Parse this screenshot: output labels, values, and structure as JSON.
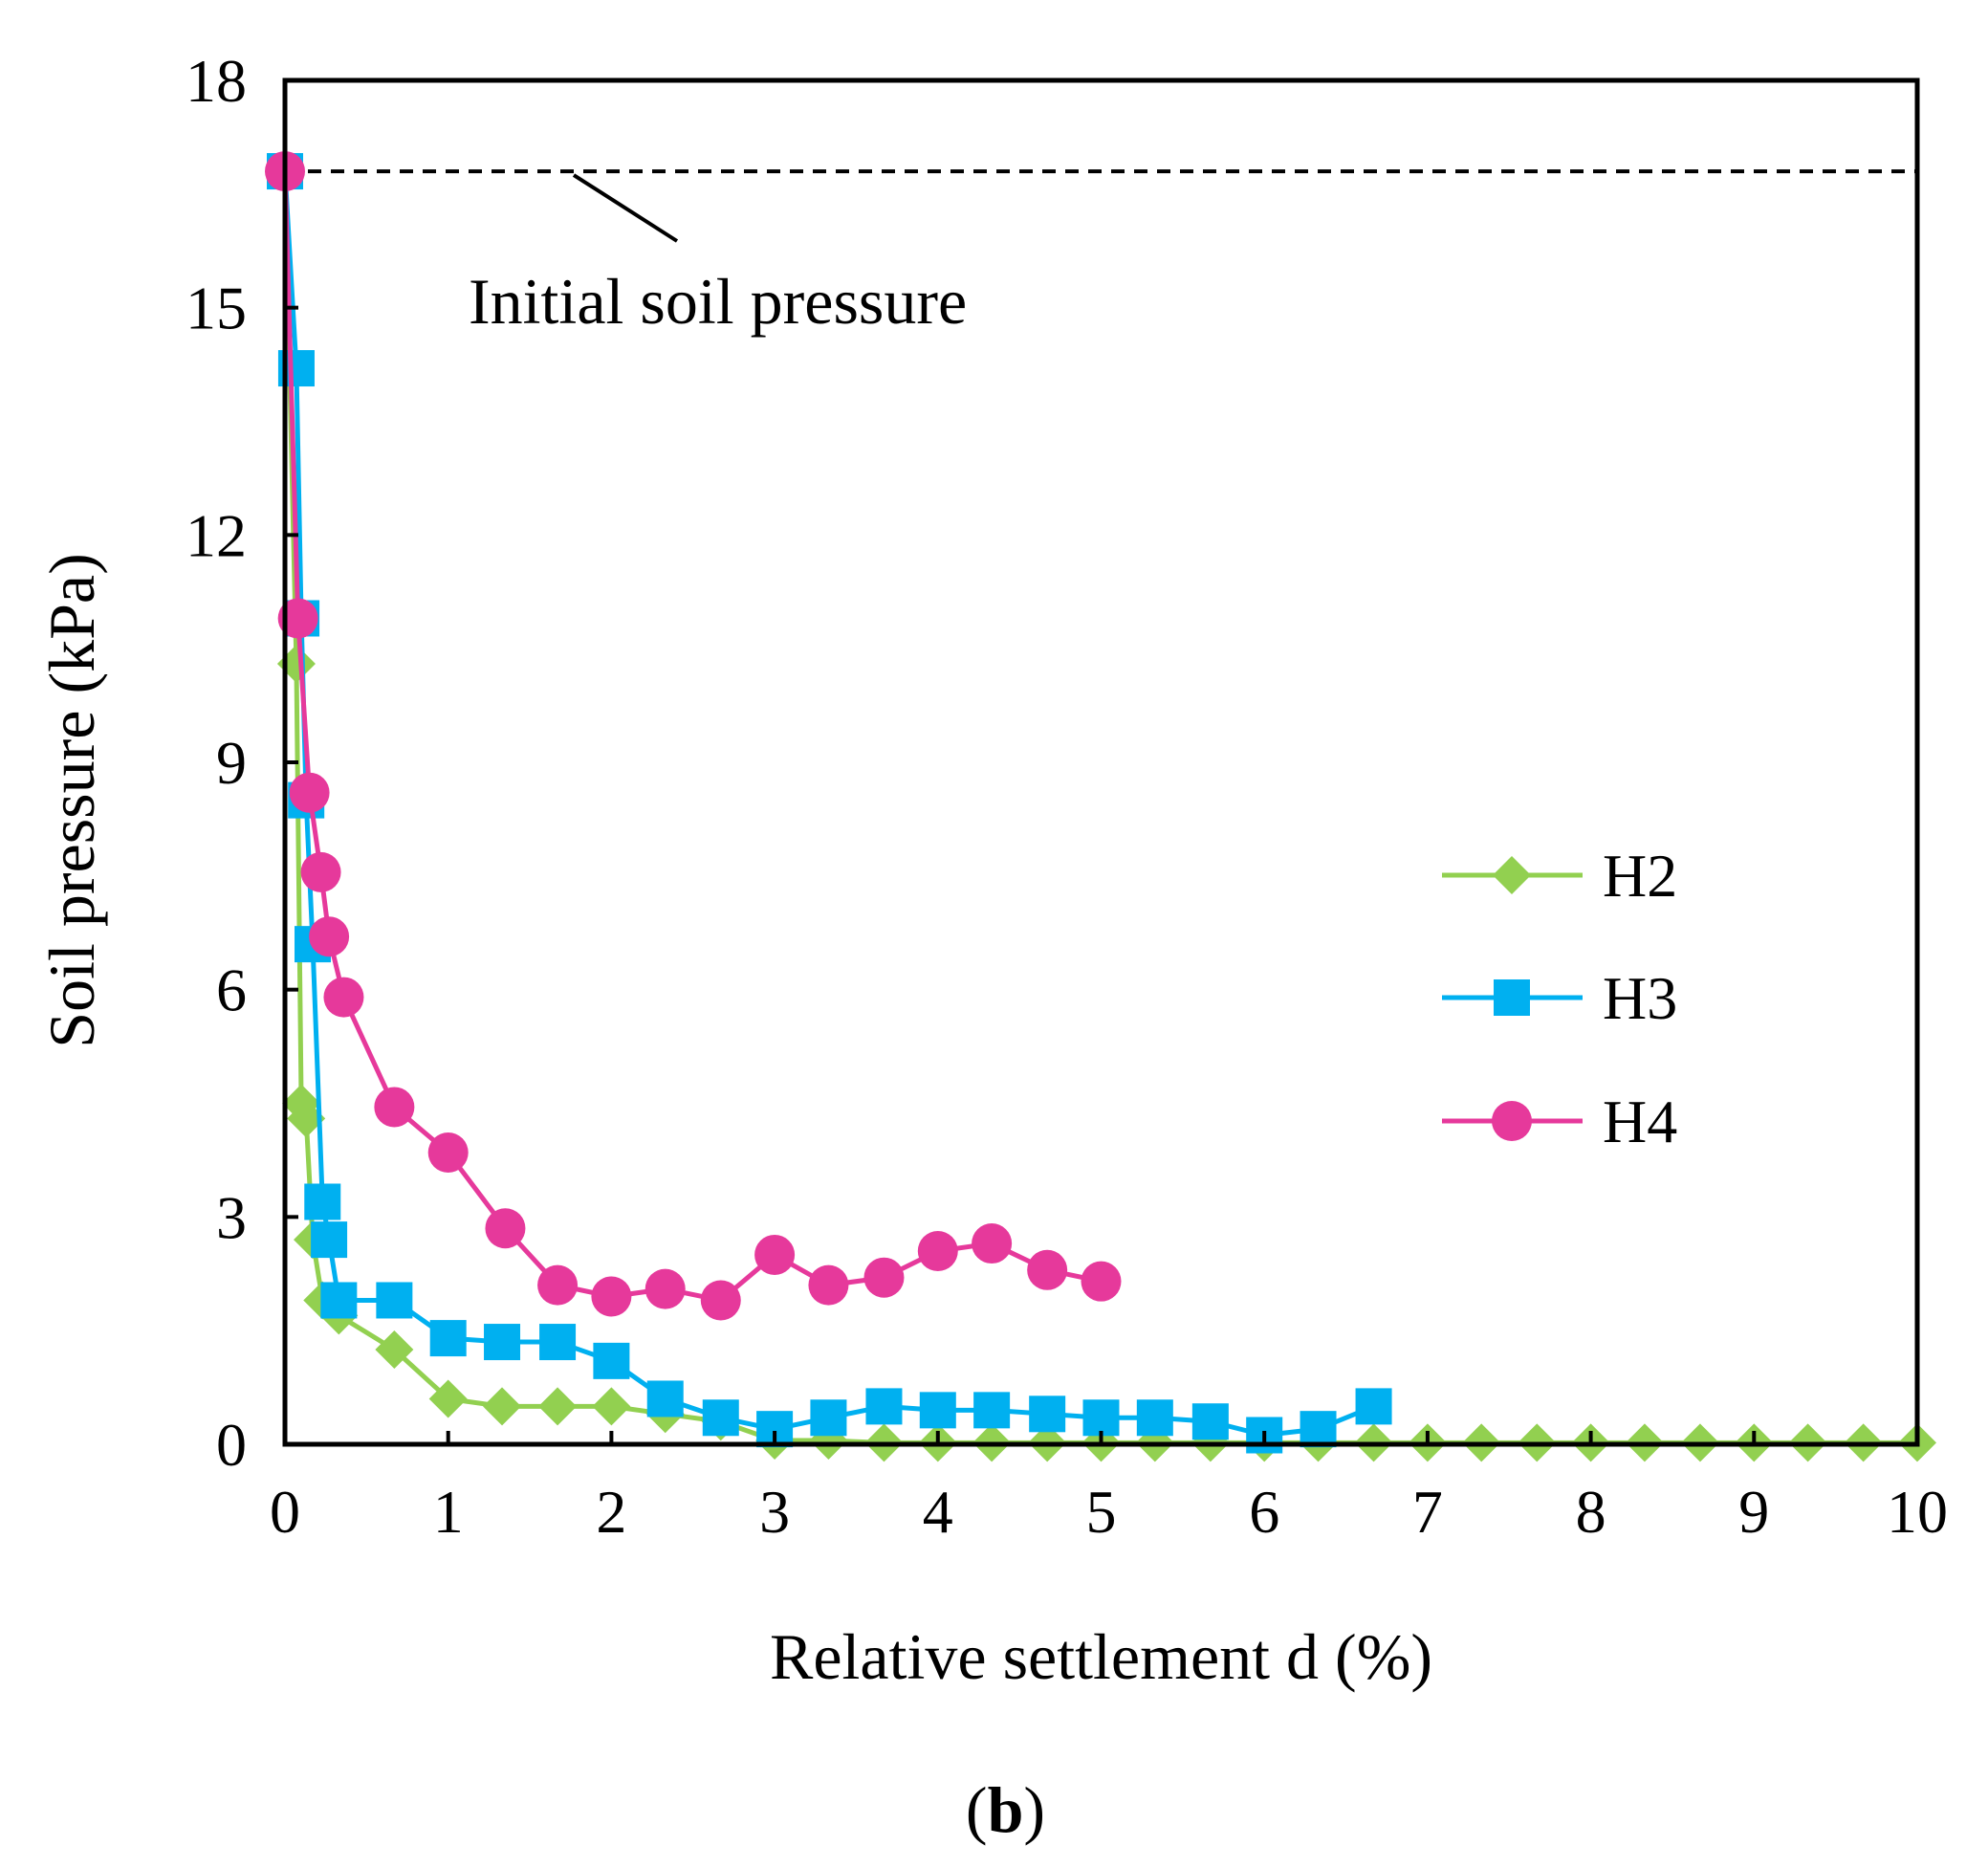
{
  "chart_data": {
    "type": "line",
    "title": "",
    "xlabel": "Relative settlement d (%)",
    "ylabel": "Soil pressure (kPa)",
    "xlim": [
      0,
      10
    ],
    "ylim": [
      0,
      18
    ],
    "xticks": [
      0,
      1,
      2,
      3,
      4,
      5,
      6,
      7,
      8,
      9,
      10
    ],
    "yticks": [
      0,
      3,
      6,
      9,
      12,
      15,
      18
    ],
    "grid": false,
    "legend_position": "right-middle",
    "reference_line": {
      "label": "Initial soil pressure",
      "y": 16.8,
      "style": "dashed"
    },
    "panel_label": {
      "open": "(",
      "letter": "b",
      "close": ")"
    },
    "series": [
      {
        "name": "H2",
        "color": "#92d050",
        "marker": "diamond",
        "x": [
          0,
          0.07,
          0.1,
          0.13,
          0.17,
          0.23,
          0.33,
          0.67,
          1.0,
          1.33,
          1.67,
          2.0,
          2.33,
          2.67,
          3.0,
          3.33,
          3.67,
          4.0,
          4.33,
          4.67,
          5.0,
          5.33,
          5.67,
          6.0,
          6.33,
          6.67,
          7.0,
          7.33,
          7.67,
          8.0,
          8.33,
          8.67,
          9.0,
          9.33,
          9.67,
          10.0
        ],
        "y": [
          16.8,
          10.3,
          4.5,
          4.3,
          2.7,
          1.9,
          1.7,
          1.25,
          0.6,
          0.5,
          0.5,
          0.5,
          0.4,
          0.3,
          0.05,
          0.05,
          0.02,
          0.02,
          0.02,
          0.02,
          0.02,
          0.02,
          0.02,
          0.02,
          0.02,
          0.02,
          0.02,
          0.02,
          0.02,
          0.02,
          0.02,
          0.02,
          0.02,
          0.02,
          0.02,
          0.02
        ]
      },
      {
        "name": "H3",
        "color": "#00b0f0",
        "marker": "square",
        "x": [
          0,
          0.07,
          0.1,
          0.13,
          0.17,
          0.23,
          0.27,
          0.33,
          0.67,
          1.0,
          1.33,
          1.67,
          2.0,
          2.33,
          2.67,
          3.0,
          3.33,
          3.67,
          4.0,
          4.33,
          4.67,
          5.0,
          5.33,
          5.67,
          6.0,
          6.33,
          6.67
        ],
        "y": [
          16.8,
          14.2,
          10.9,
          8.5,
          6.6,
          3.2,
          2.7,
          1.9,
          1.9,
          1.4,
          1.35,
          1.35,
          1.1,
          0.6,
          0.35,
          0.2,
          0.35,
          0.5,
          0.45,
          0.45,
          0.4,
          0.35,
          0.35,
          0.3,
          0.12,
          0.2,
          0.5
        ]
      },
      {
        "name": "H4",
        "color": "#e6399b",
        "marker": "circle",
        "x": [
          0,
          0.08,
          0.15,
          0.22,
          0.27,
          0.36,
          0.67,
          1.0,
          1.35,
          1.67,
          2.0,
          2.33,
          2.67,
          3.0,
          3.33,
          3.67,
          4.0,
          4.33,
          4.67,
          5.0
        ],
        "y": [
          16.8,
          10.9,
          8.6,
          7.55,
          6.7,
          5.9,
          4.45,
          3.85,
          2.85,
          2.1,
          1.95,
          2.05,
          1.9,
          2.5,
          2.1,
          2.2,
          2.55,
          2.65,
          2.3,
          2.15
        ]
      }
    ]
  }
}
